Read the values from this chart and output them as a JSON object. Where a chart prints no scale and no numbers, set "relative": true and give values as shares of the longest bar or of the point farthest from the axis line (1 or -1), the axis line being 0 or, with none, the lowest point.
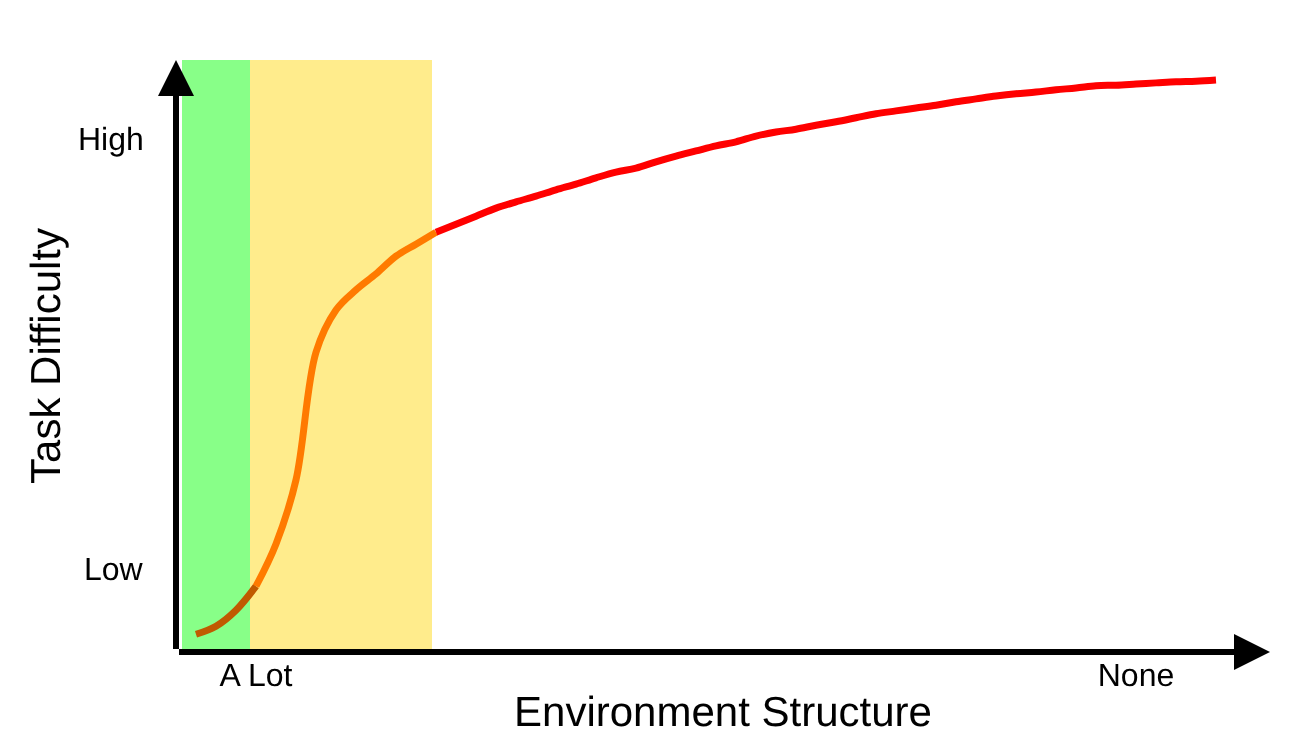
{
  "chart_data": {
    "type": "line",
    "xlabel": "Environment Structure",
    "ylabel": "Task Difficulty",
    "relative": true,
    "categories": [
      null,
      null,
      null,
      "A Lot",
      null,
      null,
      null,
      null,
      null,
      null,
      null,
      null,
      null,
      null,
      null,
      null,
      null,
      null,
      null,
      null,
      null,
      null,
      null,
      null,
      null,
      null,
      null,
      null,
      null,
      null,
      null,
      null,
      null,
      null,
      null,
      null,
      null,
      null,
      null,
      null,
      null,
      null,
      null,
      null,
      null,
      null,
      null,
      "None",
      null,
      null,
      null,
      null
    ],
    "series": [
      {
        "color": "#c05a00",
        "values": [
          0.031,
          0.045,
          0.073,
          0.115,
          null,
          null,
          null,
          null,
          null,
          null,
          null,
          null,
          null,
          null,
          null,
          null,
          null,
          null,
          null,
          null,
          null,
          null,
          null,
          null,
          null,
          null,
          null,
          null,
          null,
          null,
          null,
          null,
          null,
          null,
          null,
          null,
          null,
          null,
          null,
          null,
          null,
          null,
          null,
          null,
          null,
          null,
          null,
          null,
          null,
          null,
          null,
          null
        ]
      },
      {
        "color": "#ff7a00",
        "values": [
          null,
          null,
          null,
          0.115,
          0.189,
          0.301,
          0.524,
          0.598,
          0.633,
          0.661,
          0.692,
          0.713,
          0.734,
          null,
          null,
          null,
          null,
          null,
          null,
          null,
          null,
          null,
          null,
          null,
          null,
          null,
          null,
          null,
          null,
          null,
          null,
          null,
          null,
          null,
          null,
          null,
          null,
          null,
          null,
          null,
          null,
          null,
          null,
          null,
          null,
          null,
          null,
          null,
          null,
          null,
          null,
          null
        ]
      },
      {
        "color": "#ff0000",
        "values": [
          null,
          null,
          null,
          null,
          null,
          null,
          null,
          null,
          null,
          null,
          null,
          null,
          0.734,
          0.748,
          0.762,
          0.776,
          0.787,
          0.797,
          0.808,
          0.818,
          0.829,
          0.839,
          0.846,
          0.857,
          0.867,
          0.876,
          0.885,
          0.892,
          0.902,
          0.909,
          0.914,
          0.921,
          0.927,
          0.934,
          0.941,
          0.946,
          0.951,
          0.956,
          0.962,
          0.967,
          0.972,
          0.976,
          0.979,
          0.983,
          0.986,
          0.99,
          0.991,
          0.993,
          0.995,
          0.997,
          0.998,
          1
        ]
      }
    ],
    "annotations": [
      "Low",
      "High"
    ],
    "marker": "none",
    "line_style": "solid"
  }
}
